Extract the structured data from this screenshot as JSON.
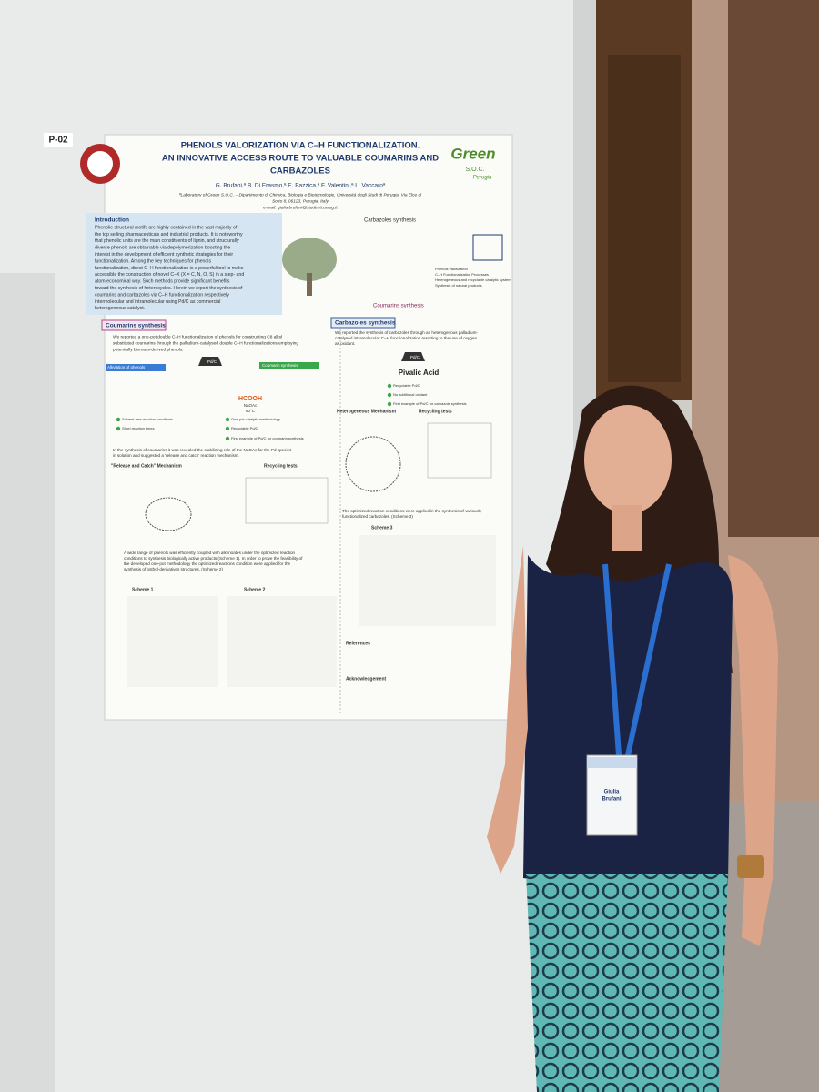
{
  "poster": {
    "number": "P-02",
    "title": [
      "PHENOLS VALORIZATION VIA  C–H FUNCTIONALIZATION.",
      "AN INNOVATIVE ACCESS ROUTE TO VALUABLE COUMARINS AND",
      "CARBAZOLES"
    ],
    "logo": [
      "Green",
      "S.O.C.",
      "Perugia"
    ],
    "authors": "G. Brufani,ª B. Di Erasmo,ª E. Bazzica,ª F. Valentini,ª L. Vaccaroª",
    "affiliation": [
      "ªLaboratory of Green S.O.C. – Dipartimento di Chimica, Biologia e Biotecnologie, Università degli Studi di Perugia, Via Elce di",
      "Sotto 8, 06123, Perugia, Italy",
      "e-mail: giulia.brufani@studenti.unipg.it"
    ],
    "introduction": {
      "heading": "Introduction",
      "lines": [
        "Phenolic structural motifs are highly contained in the vast majority of",
        "the top selling pharmaceuticals and industrial products. It is noteworthy",
        "that phenolic units are the main constituents of lignin, and structurally",
        "diverse phenols are obtainable via depolymerization boosting the",
        "interest in the development of efficient synthetic strategies for their",
        "functionalization. Among the key techniques for phenols",
        "functionalization, direct C–H functionalization is a powerful tool to make",
        "accessible the construction of novel C–X (X = C, N, O, S) in a step- and",
        "atom-economical way. Such methods provide significant benefits",
        "toward the synthesis of heterocycles. Herein we report the synthesis of",
        "coumarins and carbazoles via C–H functionalization respectively",
        "intermolecular and intramolecular using Pd/C as commercial",
        "heterogeneous catalyst."
      ]
    },
    "scheme_top": {
      "carbazoles": "Carbazoles synthesis",
      "coumarins": "Coumarins synthesis",
      "bullets": [
        "Phenols valorization",
        "C–H Functionalization Processes",
        "Heterogeneous and recyclable catalytic system",
        "Synthesis of natural products"
      ]
    },
    "coumarins": {
      "heading": "Coumarins synthesis",
      "lines": [
        "We reported a one-pot double C–H functionalization of phenols for constructing C8 alkyl",
        "substituted coumarins through the palladium-catalysed double C–H functionalizations employing",
        "potentially biomass-derived phenols."
      ],
      "alkylation": "Alkylation of phenols",
      "cs": "Coumarin synthesis",
      "reagents": [
        "HCOOH",
        "NaOAc",
        "60°C"
      ],
      "checks": [
        "Solvent-free reaction conditions",
        "Short reaction times",
        "One-pot catalytic methodology",
        "Recyclable Pd/C",
        "First example of Pd/C for coumarin synthesis"
      ],
      "stab": [
        "In the synthesis of coumarins it was revealed the stabilizing role of the NaOAc for the Pd species",
        "in solution and suggested a 'release and catch' reaction mechanism."
      ],
      "mechanism": "\"Release and Catch\" Mechanism",
      "recycling": "Recycling tests",
      "scope": [
        "A wide range of phenols was efficiently coupled with alkynoates under the optimized reaction",
        "conditions to synthesis biologically active products (Scheme 1). In order to prove the feasibility of",
        "the developed one-pot methodology the optimized reactions condition were applied for the",
        "synthesis of osthol-derivatives structures. (Scheme 2)"
      ],
      "scheme1": "Scheme 1",
      "scheme2": "Scheme 2"
    },
    "carbazoles": {
      "heading": "Carbazoles synthesis",
      "lines": [
        "We reported the synthesis of carbazoles through an heterogenous palladium-",
        "catalysed intramolecular C–H functionalization resorting to the use of oxygen",
        "as oxidant."
      ],
      "acid": "Pivalic Acid",
      "checks": [
        "Recyclable Pd/C",
        "No additional oxidant",
        "First example of Pd/C for carbazole synthesis"
      ],
      "mechanism": "Heterogeneous Mechanism",
      "recycling": "Recycling tests",
      "applied": [
        "The optimized reaction conditions were applied in the synthesis of variously",
        "functionalized carbazoles. (Scheme 3)"
      ],
      "scheme3": "Scheme 3",
      "references": "References",
      "acknowledgement": "Acknowledgement"
    },
    "catalyst": "Pd/C"
  },
  "badge": [
    "Giulia",
    "Brufani"
  ]
}
